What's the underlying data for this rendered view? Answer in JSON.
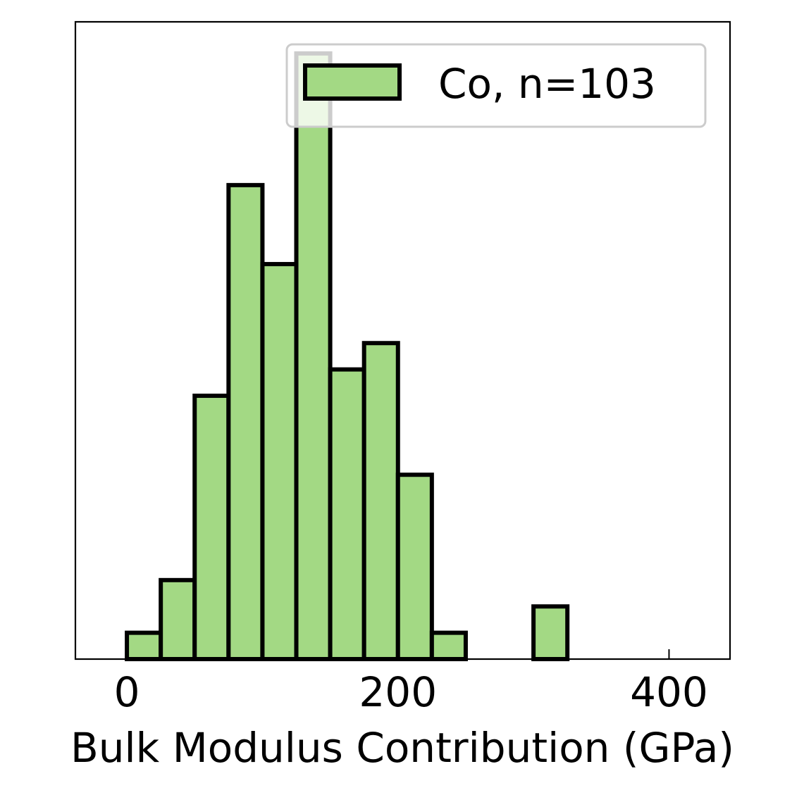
{
  "chart_data": {
    "type": "bar",
    "subtype": "histogram",
    "bin_edges": [
      0,
      25,
      50,
      75,
      100,
      125,
      150,
      175,
      200,
      225,
      250,
      275,
      300,
      325
    ],
    "counts": [
      1,
      3,
      10,
      18,
      15,
      23,
      11,
      12,
      7,
      1,
      0,
      0,
      2
    ],
    "title": "",
    "xlabel": "Bulk Modulus Contribution (GPa)",
    "ylabel": "",
    "xlim": [
      -38,
      445
    ],
    "ylim": [
      0,
      24.2
    ],
    "x_ticks": [
      0,
      200,
      400
    ],
    "x_tick_labels": [
      "0",
      "200",
      "400"
    ],
    "y_ticks_visible": false,
    "grid": false,
    "legend": {
      "position": "top-right",
      "entries": [
        {
          "label": "Co, n=103"
        }
      ]
    },
    "series": [
      {
        "name": "Co, n=103",
        "fill_color": "#a3d984",
        "edge_color": "#000000"
      }
    ]
  }
}
